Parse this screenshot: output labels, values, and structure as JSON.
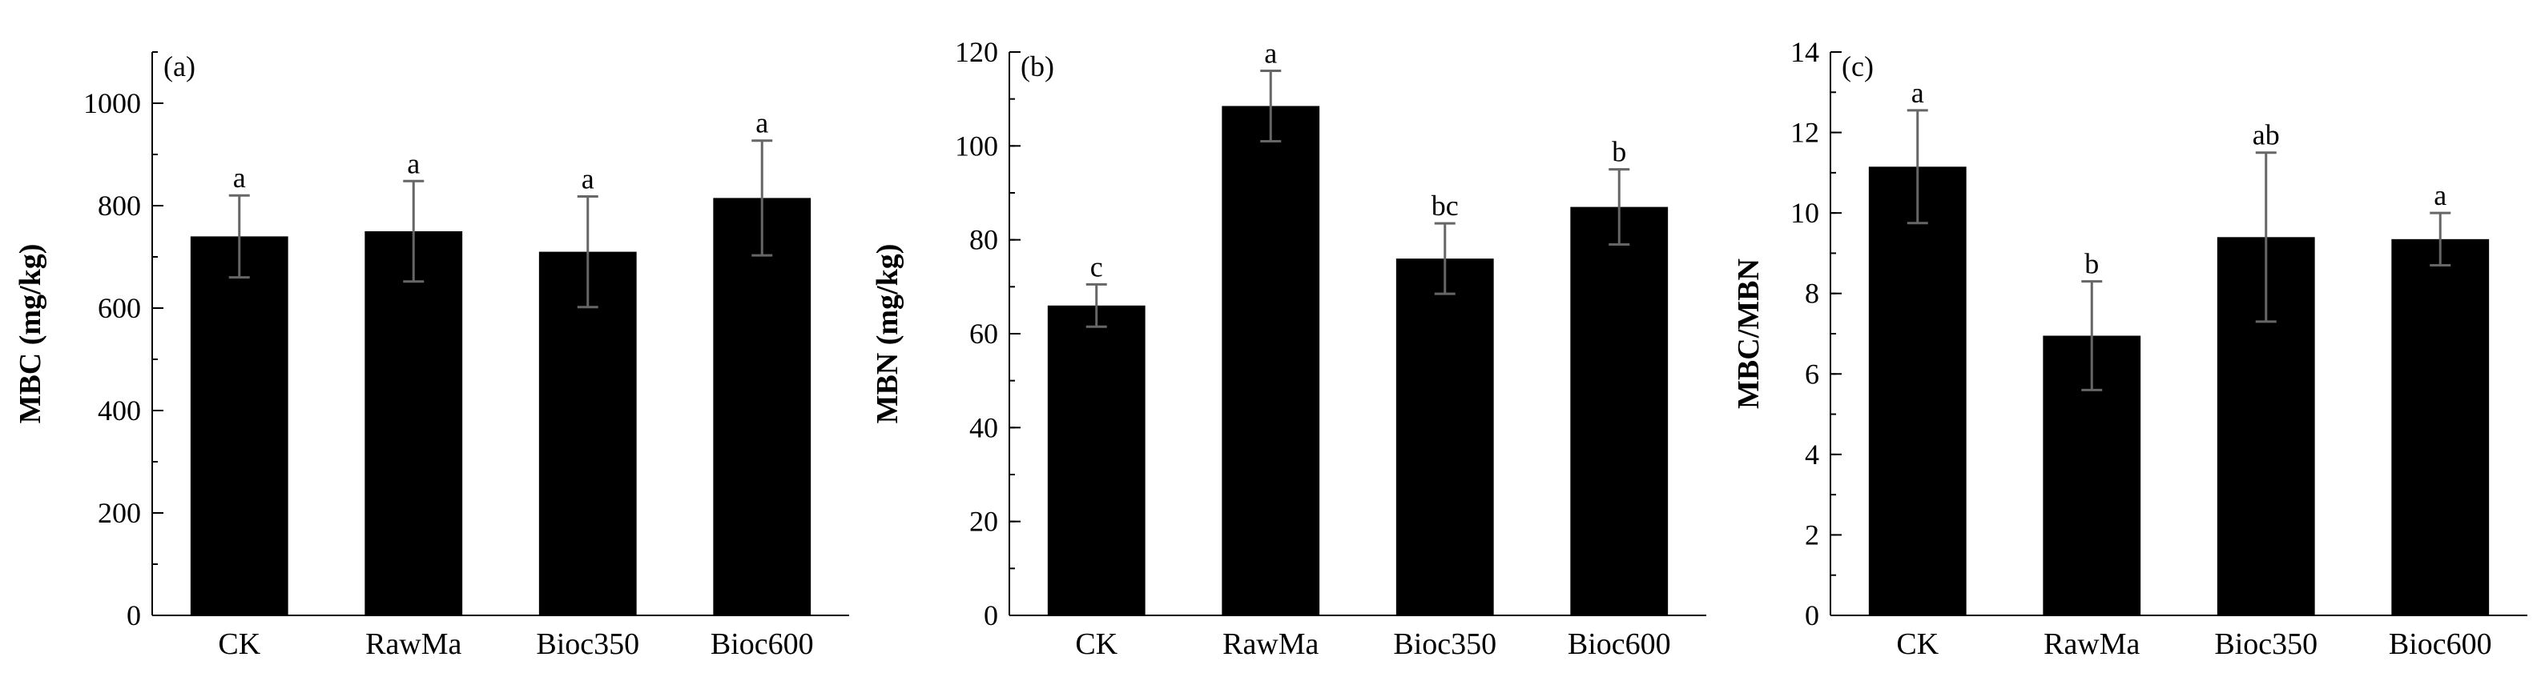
{
  "chart_data": [
    {
      "type": "bar",
      "panel_label": "(a)",
      "ylabel": "MBC (mg/kg)",
      "categories": [
        "CK",
        "RawMa",
        "Bioc350",
        "Bioc600"
      ],
      "values": [
        740,
        750,
        710,
        815
      ],
      "errors": [
        80,
        98,
        108,
        112
      ],
      "significance": [
        "a",
        "a",
        "a",
        "a"
      ],
      "ylim": [
        0,
        1100
      ],
      "yticks": [
        0,
        200,
        400,
        600,
        800,
        1000
      ],
      "ytick_labels": [
        "0",
        "200",
        "400",
        "600",
        "800",
        "1000"
      ],
      "minor_step": 100,
      "bar_color": "#000000",
      "error_color": "#666666"
    },
    {
      "type": "bar",
      "panel_label": "(b)",
      "ylabel": "MBN (mg/kg)",
      "categories": [
        "CK",
        "RawMa",
        "Bioc350",
        "Bioc600"
      ],
      "values": [
        66,
        108.5,
        76,
        87
      ],
      "errors": [
        4.5,
        7.5,
        7.5,
        8
      ],
      "significance": [
        "c",
        "a",
        "bc",
        "b"
      ],
      "ylim": [
        0,
        120
      ],
      "yticks": [
        0,
        20,
        40,
        60,
        80,
        100,
        120
      ],
      "ytick_labels": [
        "0",
        "20",
        "40",
        "60",
        "80",
        "100",
        "120"
      ],
      "minor_step": 10,
      "bar_color": "#000000",
      "error_color": "#666666"
    },
    {
      "type": "bar",
      "panel_label": "(c)",
      "ylabel": "MBC/MBN",
      "categories": [
        "CK",
        "RawMa",
        "Bioc350",
        "Bioc600"
      ],
      "values": [
        11.15,
        6.95,
        9.4,
        9.35
      ],
      "errors": [
        1.4,
        1.35,
        2.1,
        0.65
      ],
      "significance": [
        "a",
        "b",
        "ab",
        "a"
      ],
      "ylim": [
        0,
        14
      ],
      "yticks": [
        0,
        2,
        4,
        6,
        8,
        10,
        12,
        14
      ],
      "ytick_labels": [
        "0",
        "2",
        "4",
        "6",
        "8",
        "10",
        "12",
        "14"
      ],
      "minor_step": 1,
      "bar_color": "#000000",
      "error_color": "#666666"
    }
  ]
}
